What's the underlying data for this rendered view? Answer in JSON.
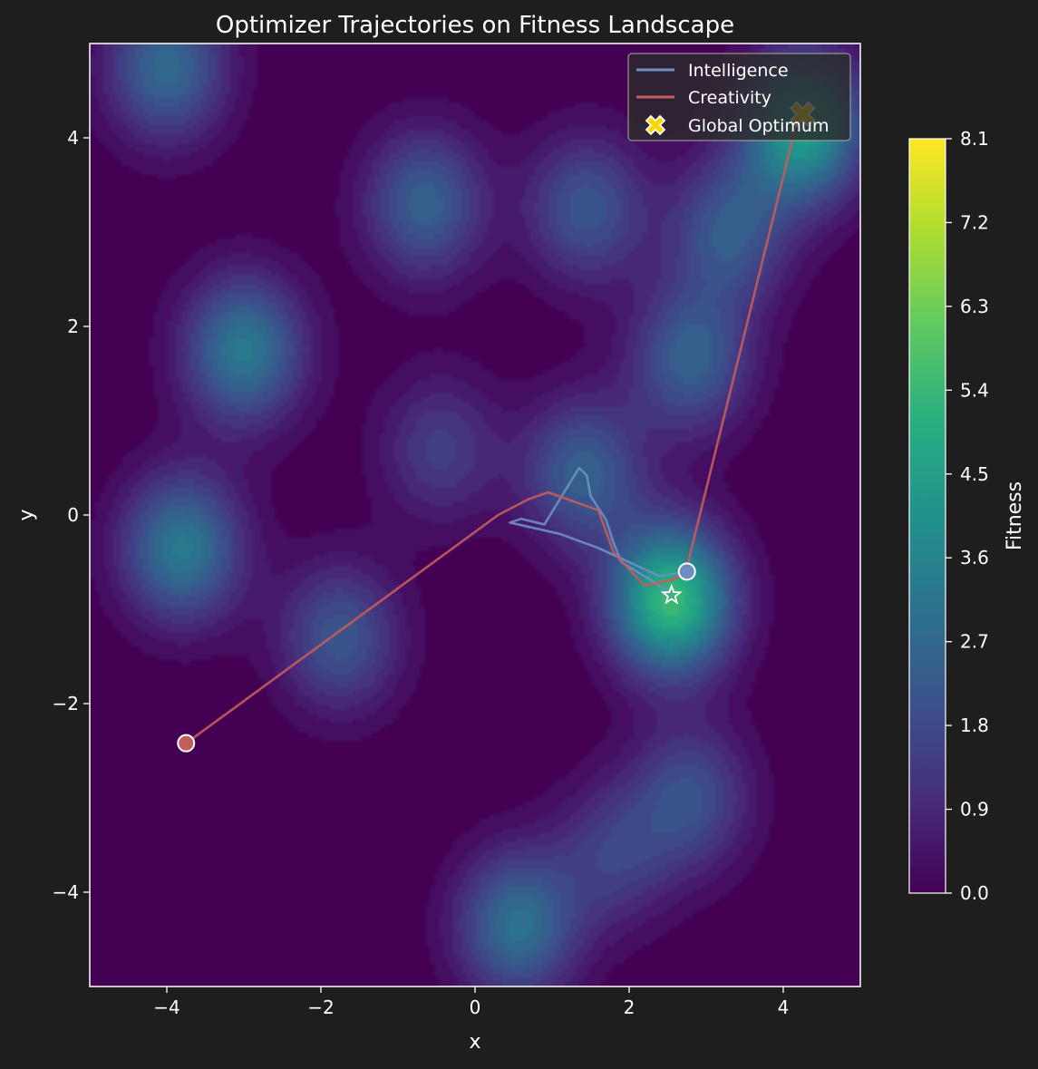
{
  "chart_data": {
    "type": "contour",
    "title": "Optimizer Trajectories on Fitness Landscape",
    "xlabel": "x",
    "ylabel": "y",
    "xlim": [
      -5,
      5
    ],
    "ylim": [
      -5,
      5
    ],
    "x_ticks": [
      -4,
      -2,
      0,
      2,
      4
    ],
    "y_ticks": [
      -4,
      -2,
      0,
      2,
      4
    ],
    "x_tick_labels": [
      "−4",
      "−2",
      "0",
      "2",
      "4"
    ],
    "y_tick_labels": [
      "−4",
      "−2",
      "0",
      "2",
      "4"
    ],
    "grid": false,
    "legend_position": "top-right",
    "colormap": "viridis",
    "colorbar": {
      "label": "Fitness",
      "min": 0.0,
      "max": 8.1,
      "ticks": [
        0.0,
        0.9,
        1.8,
        2.7,
        3.6,
        4.5,
        5.4,
        6.3,
        7.2,
        8.1
      ],
      "tick_labels": [
        "0.0",
        "0.9",
        "1.8",
        "2.7",
        "3.6",
        "4.5",
        "5.4",
        "6.3",
        "7.2",
        "8.1"
      ]
    },
    "landscape_peaks": [
      {
        "x": 2.55,
        "y": -0.9,
        "height": 5.6
      },
      {
        "x": 4.25,
        "y": 4.1,
        "height": 4.6
      },
      {
        "x": -3.0,
        "y": 1.75,
        "height": 3.4
      },
      {
        "x": -3.8,
        "y": -0.35,
        "height": 3.4
      },
      {
        "x": 0.55,
        "y": -4.35,
        "height": 3.1
      },
      {
        "x": -4.0,
        "y": 4.75,
        "height": 2.9
      },
      {
        "x": -0.65,
        "y": 3.3,
        "height": 2.6
      },
      {
        "x": 1.45,
        "y": 3.25,
        "height": 2.3
      },
      {
        "x": 2.8,
        "y": 1.65,
        "height": 2.6
      },
      {
        "x": 3.3,
        "y": 3.0,
        "height": 2.4
      },
      {
        "x": 1.4,
        "y": 0.45,
        "height": 2.6
      },
      {
        "x": -1.75,
        "y": -1.3,
        "height": 2.3
      },
      {
        "x": -0.45,
        "y": 0.7,
        "height": 1.6
      },
      {
        "x": 2.8,
        "y": -3.0,
        "height": 2.1
      },
      {
        "x": 1.8,
        "y": -3.6,
        "height": 1.6
      }
    ],
    "series": [
      {
        "name": "Intelligence",
        "color": "#6b8fc4",
        "x": [
          2.75,
          2.4,
          1.6,
          1.1,
          0.45,
          0.6,
          0.9,
          1.35,
          1.45,
          1.5,
          1.7,
          1.8,
          1.9,
          2.2,
          2.4,
          2.55
        ],
        "y": [
          -0.6,
          -0.65,
          -0.35,
          -0.2,
          -0.08,
          -0.04,
          -0.1,
          0.5,
          0.42,
          0.2,
          -0.05,
          -0.3,
          -0.5,
          -0.65,
          -0.75,
          -0.85
        ]
      },
      {
        "name": "Creativity",
        "color": "#c45c5c",
        "x": [
          -3.75,
          0.3,
          0.7,
          0.95,
          1.6,
          1.8,
          2.2,
          2.6,
          2.75,
          4.2
        ],
        "y": [
          -2.42,
          0.0,
          0.17,
          0.24,
          0.05,
          -0.4,
          -0.75,
          -0.68,
          -0.55,
          4.25
        ]
      }
    ],
    "start_markers": [
      {
        "series": "Intelligence",
        "x": 2.75,
        "y": -0.6
      },
      {
        "series": "Creativity",
        "x": -3.75,
        "y": -2.42
      }
    ],
    "end_marker": {
      "x": 2.55,
      "y": -0.85,
      "shape": "star"
    },
    "global_optimum": {
      "name": "Global Optimum",
      "x": 4.25,
      "y": 4.25,
      "color": "#ffd500",
      "shape": "x-marker"
    }
  }
}
